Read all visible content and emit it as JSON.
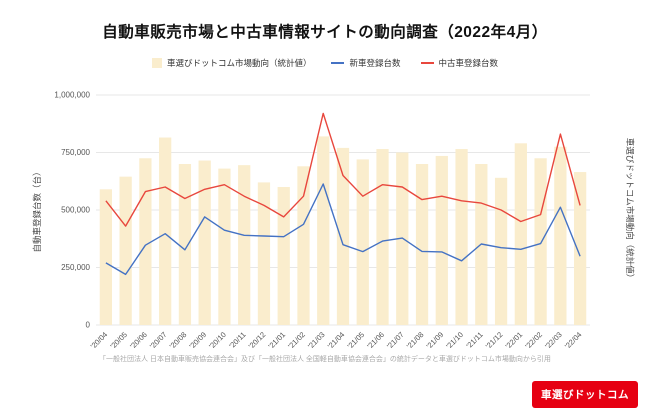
{
  "page": {
    "title": "自動車販売市場と中古車情報サイトの動向調査（2022年4月）",
    "source_note": "「一般社団法人 日本自動車販売協会連合会」及び「一般社団法人 全国軽自動車協会連合会」の統計データと車選びドットコム市場動向から引用",
    "logo_text": "車選びドットコム"
  },
  "colors": {
    "bar": "#faedcd",
    "new_car_line": "#4472c4",
    "used_car_line": "#e8473d",
    "grid": "#e7e7e7",
    "axis_text": "#444444",
    "tick_text": "#555555",
    "logo_bg": "#e60012"
  },
  "chart_data": {
    "type": "bar",
    "subtype": "bar+line combo",
    "categories": [
      "'20/04",
      "'20/05",
      "'20/06",
      "'20/07",
      "'20/08",
      "'20/09",
      "'20/10",
      "'20/11",
      "'20/12",
      "'21/01",
      "'21/02",
      "'21/03",
      "'21/04",
      "'21/05",
      "'21/06",
      "'21/07",
      "'21/08",
      "'21/09",
      "'21/10",
      "'21/11",
      "'21/12",
      "'22/01",
      "'22/02",
      "'22/03",
      "'22/04"
    ],
    "series": [
      {
        "name": "車選びドットコム市場動向（統計値）",
        "type": "bar",
        "color": "#faedcd",
        "values": [
          590000,
          645000,
          725000,
          815000,
          700000,
          715000,
          680000,
          695000,
          620000,
          600000,
          690000,
          820000,
          770000,
          720000,
          765000,
          750000,
          700000,
          735000,
          765000,
          700000,
          640000,
          790000,
          725000,
          775000,
          665000
        ]
      },
      {
        "name": "新車登録台数",
        "type": "line",
        "color": "#4472c4",
        "values": [
          270000,
          220000,
          347000,
          397000,
          327000,
          470000,
          412000,
          390000,
          387000,
          384000,
          438000,
          613000,
          349000,
          319000,
          365000,
          378000,
          320000,
          318000,
          279000,
          352000,
          336000,
          329000,
          354000,
          512000,
          299000
        ]
      },
      {
        "name": "中古車登録台数",
        "type": "line",
        "color": "#e8473d",
        "values": [
          540000,
          430000,
          580000,
          600000,
          550000,
          590000,
          610000,
          560000,
          520000,
          470000,
          560000,
          920000,
          650000,
          560000,
          610000,
          600000,
          545000,
          560000,
          540000,
          530000,
          500000,
          450000,
          480000,
          830000,
          520000
        ]
      }
    ],
    "ylabel_left": "自動車登録台数（台）",
    "ylabel_right": "車選びドットコム市場動向（統計値）",
    "ylim": [
      0,
      1000000
    ],
    "yticks": [
      0,
      250000,
      500000,
      750000,
      1000000
    ],
    "ytick_labels": [
      "0",
      "250,000",
      "500,000",
      "750,000",
      "1,000,000"
    ],
    "grid": true,
    "legend_position": "top"
  }
}
